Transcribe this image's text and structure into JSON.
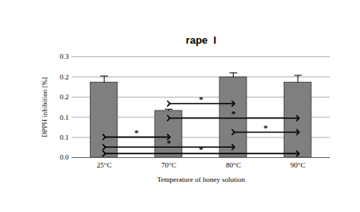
{
  "chart_data": {
    "type": "bar",
    "title": "rape  I",
    "x_label": "Temperature of honey solution",
    "y_label": "DPPH inhibition [%]",
    "categories": [
      "25°C",
      "70°C",
      "80°C",
      "90°C"
    ],
    "values": [
      0.186,
      0.116,
      0.199,
      0.186
    ],
    "errors": [
      0.016,
      0.004,
      0.011,
      0.018
    ],
    "color": "#7f7f7f",
    "ylim": [
      0,
      0.25
    ],
    "yticks": [
      {
        "value": 0,
        "label": "0.0"
      },
      {
        "value": 0.05,
        "label": "0.1"
      },
      0.1,
      {
        "value": 0.15,
        "label": "0.2"
      },
      0.2,
      {
        "value": 0.25,
        "label": "0.3"
      }
    ],
    "grid": true,
    "comparisons": [
      {
        "from": "70°C",
        "to": "80°C",
        "y": 0.134,
        "label": "*"
      },
      {
        "from": "70°C",
        "to": "90°C",
        "y": 0.098,
        "label": "*"
      },
      {
        "from": "80°C",
        "to": "90°C",
        "y": 0.063,
        "label": "*"
      },
      {
        "from": "25°C",
        "to": "70°C",
        "y": 0.051,
        "label": "*"
      },
      {
        "from": "25°C",
        "to": "80°C",
        "y": 0.026,
        "label": "*"
      },
      {
        "from": "25°C",
        "to": "90°C",
        "y": 0.01,
        "label": "*"
      }
    ]
  }
}
